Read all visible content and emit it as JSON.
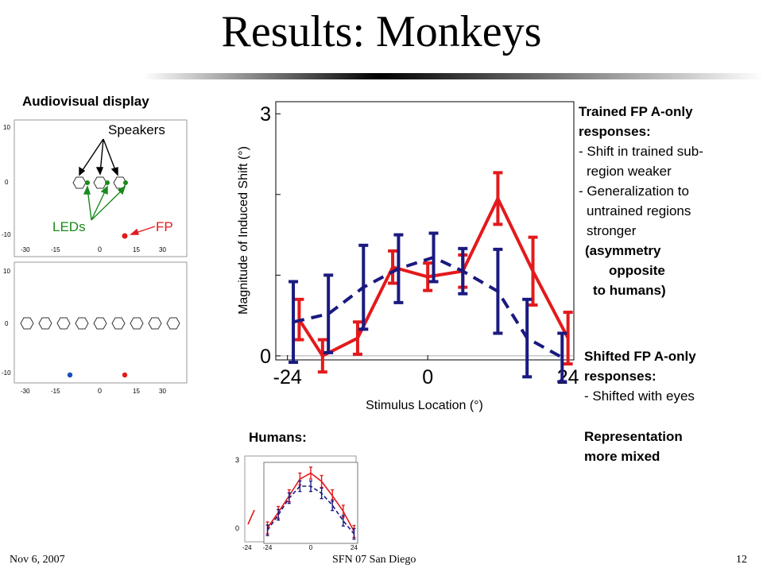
{
  "title": "Results: Monkeys",
  "footer": {
    "date": "Nov  6, 2007",
    "venue": "SFN 07 San Diego",
    "page": "12"
  },
  "audiovisual": {
    "heading": "Audiovisual display",
    "speakers_label": "Speakers",
    "leds_label": "LEDs",
    "fp_label": "FP",
    "top_panel": {
      "y_ticks": [
        "10",
        "0",
        "-10"
      ],
      "x_ticks": [
        "-30",
        "-15",
        "0",
        "15",
        "30"
      ]
    },
    "bottom_panel": {
      "y_ticks": [
        "10",
        "0",
        "-10"
      ],
      "x_ticks": [
        "-30",
        "-15",
        "0",
        "15",
        "30"
      ]
    }
  },
  "chart_data": [
    {
      "type": "line",
      "xlabel": "Stimulus Location (°)",
      "ylabel": "Magnitude of Induced Shift (°)",
      "x_tick_labels": [
        "-24",
        "0",
        "24"
      ],
      "y_tick_labels": [
        "0",
        "3"
      ],
      "xlim": [
        -26,
        25
      ],
      "ylim": [
        -0.05,
        3.15
      ],
      "series": [
        {
          "color": "#e31a1c",
          "style": "solid",
          "x": [
            -22,
            -18,
            -12,
            -6,
            0,
            6,
            12,
            18,
            24
          ],
          "y": [
            0.45,
            0.0,
            0.22,
            1.1,
            0.98,
            1.05,
            1.95,
            1.05,
            0.22
          ],
          "err": [
            0.25,
            0.2,
            0.2,
            0.2,
            0.17,
            0.2,
            0.32,
            0.42,
            0.32
          ]
        },
        {
          "color": "#1a1a80",
          "style": "dashed",
          "x": [
            -23,
            -17,
            -11,
            -5,
            1,
            6,
            12,
            17,
            23
          ],
          "y": [
            0.42,
            0.52,
            0.85,
            1.08,
            1.22,
            1.05,
            0.8,
            0.22,
            -0.02
          ],
          "err": [
            0.5,
            0.48,
            0.52,
            0.42,
            0.3,
            0.28,
            0.52,
            0.48,
            0.3
          ]
        }
      ]
    },
    {
      "type": "line",
      "panel": "humans",
      "x_tick_labels": [
        "-24",
        "0",
        "24"
      ],
      "back_x_tick_labels": [
        "-24"
      ],
      "y_tick_labels": [
        "3",
        "0"
      ],
      "xlim": [
        -26,
        26
      ],
      "ylim": [
        -0.2,
        3.0
      ],
      "series": [
        {
          "color": "#e31a1c",
          "style": "solid",
          "x": [
            -24,
            -18,
            -12,
            -6,
            0,
            6,
            12,
            18,
            24
          ],
          "y": [
            0.25,
            0.9,
            1.6,
            2.3,
            2.55,
            2.2,
            1.6,
            0.95,
            0.1
          ],
          "err": [
            0.25,
            0.25,
            0.25,
            0.25,
            0.25,
            0.25,
            0.25,
            0.25,
            0.25
          ]
        },
        {
          "color": "#1a1a80",
          "style": "dashed",
          "x": [
            -24,
            -18,
            -12,
            -6,
            0,
            6,
            12,
            18,
            24
          ],
          "y": [
            0.15,
            0.8,
            1.5,
            2.0,
            2.0,
            1.7,
            1.2,
            0.55,
            0.0
          ],
          "err": [
            0.22,
            0.22,
            0.22,
            0.22,
            0.22,
            0.22,
            0.22,
            0.22,
            0.22
          ]
        }
      ]
    }
  ],
  "humans_label": "Humans:",
  "trained": {
    "heading1": "Trained FP A-only",
    "heading2": "responses:",
    "line1": "- Shift in trained sub-",
    "line2": "region weaker",
    "line3": "- Generalization to",
    "line4": "untrained regions",
    "line5": "stronger",
    "note1": "(asymmetry",
    "note2": "opposite",
    "note3": "to humans)"
  },
  "shifted": {
    "heading1": "Shifted FP A-only",
    "heading2": "responses:",
    "line1": "- Shifted with eyes"
  },
  "representation": {
    "line1": "Representation",
    "line2": "more mixed"
  }
}
